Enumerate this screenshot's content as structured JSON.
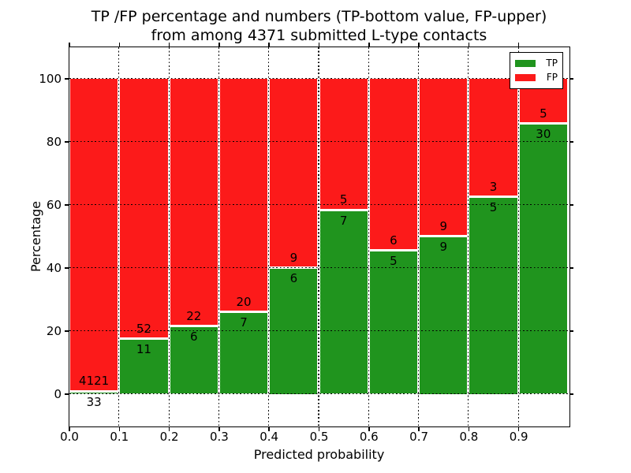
{
  "figure": {
    "background": "#ffffff"
  },
  "title": {
    "line1": "TP /FP percentage and numbers (TP-bottom value, FP-upper)",
    "line2": "from among 4371 submitted L-type contacts"
  },
  "axes": {
    "xlabel": "Predicted probability",
    "ylabel": "Percentage"
  },
  "chart_data": {
    "type": "bar",
    "stacked": true,
    "normalized_to_percent": true,
    "title": "TP /FP percentage and numbers (TP-bottom value, FP-upper) from among 4371 submitted L-type contacts",
    "xlabel": "Predicted probability",
    "ylabel": "Percentage",
    "total_contacts": 4371,
    "bins_start": [
      0.0,
      0.1,
      0.2,
      0.3,
      0.4,
      0.5,
      0.6,
      0.7,
      0.8,
      0.9
    ],
    "bin_width": 0.1,
    "series": [
      {
        "name": "TP",
        "color": "#20941e",
        "counts": [
          33,
          11,
          6,
          7,
          6,
          7,
          5,
          9,
          5,
          30
        ]
      },
      {
        "name": "FP",
        "color": "#fc1a1a",
        "counts": [
          4121,
          52,
          22,
          20,
          9,
          5,
          6,
          9,
          3,
          5
        ]
      }
    ],
    "tp_percent": [
      0.79,
      17.46,
      21.43,
      25.93,
      40.0,
      58.33,
      45.45,
      50.0,
      62.5,
      85.71
    ],
    "xticks": {
      "values": [
        0.0,
        0.1,
        0.2,
        0.3,
        0.4,
        0.5,
        0.6,
        0.7,
        0.8,
        0.9
      ],
      "labels": [
        "0.0",
        "0.1",
        "0.2",
        "0.3",
        "0.4",
        "0.5",
        "0.6",
        "0.7",
        "0.8",
        "0.9"
      ]
    },
    "yticks": {
      "values": [
        0,
        20,
        40,
        60,
        80,
        100
      ],
      "labels": [
        "0",
        "20",
        "40",
        "60",
        "80",
        "100"
      ]
    },
    "xlim": [
      0.0,
      1.0
    ],
    "ylim": [
      -10,
      110
    ],
    "grid": true,
    "grid_style": "dotted",
    "bar_edge_color": "#ffffff",
    "legend": {
      "position": "upper-right",
      "entries": [
        "TP",
        "FP"
      ]
    }
  }
}
